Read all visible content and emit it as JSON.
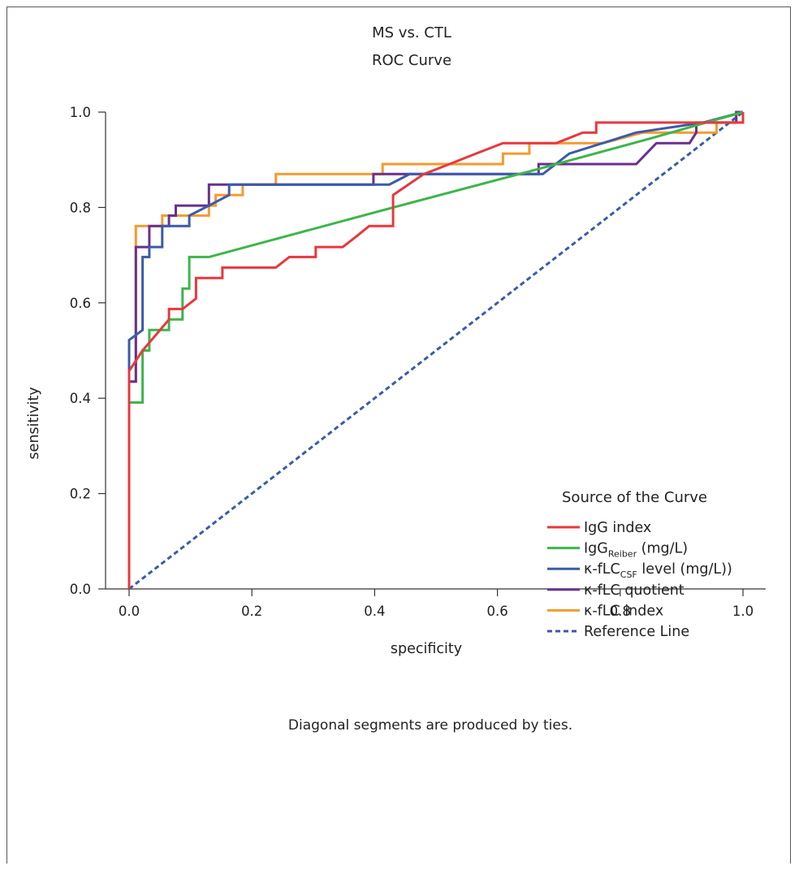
{
  "chart_data": {
    "type": "line",
    "title_lines": [
      "MS vs. CTL",
      "ROC Curve"
    ],
    "xlabel": "specificity",
    "ylabel": "sensitivity",
    "xlim": [
      0,
      1
    ],
    "ylim": [
      0,
      1
    ],
    "x_ticks": [
      "0.0",
      "0.2",
      "0.4",
      "0.6",
      "0.8",
      "1.0"
    ],
    "y_ticks": [
      "0.0",
      "0.2",
      "0.4",
      "0.6",
      "0.8",
      "1.0"
    ],
    "grid": false,
    "legend": {
      "title": "Source of the Curve",
      "placement": "right-lower"
    },
    "footnote": "Diagonal segments are produced by ties.",
    "series": [
      {
        "name": "IgG index",
        "label_parts": [
          {
            "t": "IgG index"
          }
        ],
        "color": "#e8383d",
        "dashed": false,
        "points": [
          [
            0,
            0
          ],
          [
            0,
            0.457
          ],
          [
            0.022,
            0.5
          ],
          [
            0.065,
            0.565
          ],
          [
            0.065,
            0.587
          ],
          [
            0.087,
            0.587
          ],
          [
            0.109,
            0.609
          ],
          [
            0.109,
            0.652
          ],
          [
            0.152,
            0.652
          ],
          [
            0.152,
            0.674
          ],
          [
            0.239,
            0.674
          ],
          [
            0.261,
            0.696
          ],
          [
            0.304,
            0.696
          ],
          [
            0.304,
            0.717
          ],
          [
            0.348,
            0.717
          ],
          [
            0.37,
            0.739
          ],
          [
            0.391,
            0.761
          ],
          [
            0.43,
            0.761
          ],
          [
            0.43,
            0.826
          ],
          [
            0.48,
            0.87
          ],
          [
            0.522,
            0.891
          ],
          [
            0.565,
            0.913
          ],
          [
            0.609,
            0.935
          ],
          [
            0.652,
            0.935
          ],
          [
            0.696,
            0.935
          ],
          [
            0.739,
            0.957
          ],
          [
            0.761,
            0.957
          ],
          [
            0.761,
            0.978
          ],
          [
            0.87,
            0.978
          ],
          [
            1,
            0.978
          ],
          [
            1,
            1
          ]
        ]
      },
      {
        "name": "IgG Reiber (mg/L)",
        "label_parts": [
          {
            "t": "IgG"
          },
          {
            "t": "Reiber",
            "sub": true
          },
          {
            "t": " (mg/L)"
          }
        ],
        "color": "#3db54a",
        "dashed": false,
        "points": [
          [
            0,
            0
          ],
          [
            0,
            0.391
          ],
          [
            0.022,
            0.391
          ],
          [
            0.022,
            0.5
          ],
          [
            0.033,
            0.5
          ],
          [
            0.033,
            0.543
          ],
          [
            0.065,
            0.543
          ],
          [
            0.065,
            0.565
          ],
          [
            0.087,
            0.565
          ],
          [
            0.087,
            0.63
          ],
          [
            0.098,
            0.63
          ],
          [
            0.098,
            0.696
          ],
          [
            0.13,
            0.696
          ],
          [
            0.43,
            0.8
          ],
          [
            0.65,
            0.875
          ],
          [
            0.85,
            0.945
          ],
          [
            1,
            1
          ]
        ]
      },
      {
        "name": "κ-fLC CSF level (mg/L))",
        "label_parts": [
          {
            "t": "κ-fLC"
          },
          {
            "t": "CSF",
            "sub": true
          },
          {
            "t": " level (mg/L))"
          }
        ],
        "color": "#3a5ba8",
        "dashed": false,
        "points": [
          [
            0,
            0
          ],
          [
            0,
            0.522
          ],
          [
            0.022,
            0.543
          ],
          [
            0.022,
            0.696
          ],
          [
            0.033,
            0.696
          ],
          [
            0.033,
            0.717
          ],
          [
            0.054,
            0.717
          ],
          [
            0.054,
            0.761
          ],
          [
            0.098,
            0.761
          ],
          [
            0.098,
            0.783
          ],
          [
            0.13,
            0.804
          ],
          [
            0.163,
            0.826
          ],
          [
            0.163,
            0.848
          ],
          [
            0.424,
            0.848
          ],
          [
            0.457,
            0.87
          ],
          [
            0.674,
            0.87
          ],
          [
            0.717,
            0.913
          ],
          [
            0.826,
            0.957
          ],
          [
            0.935,
            0.978
          ],
          [
            1,
            1
          ]
        ]
      },
      {
        "name": "κ-fLC quotient",
        "label_parts": [
          {
            "t": "κ-fLC quotient"
          }
        ],
        "color": "#6a2f8c",
        "dashed": false,
        "points": [
          [
            0,
            0
          ],
          [
            0,
            0.435
          ],
          [
            0.011,
            0.435
          ],
          [
            0.011,
            0.717
          ],
          [
            0.033,
            0.717
          ],
          [
            0.033,
            0.761
          ],
          [
            0.065,
            0.761
          ],
          [
            0.065,
            0.783
          ],
          [
            0.076,
            0.783
          ],
          [
            0.076,
            0.804
          ],
          [
            0.13,
            0.804
          ],
          [
            0.13,
            0.848
          ],
          [
            0.239,
            0.848
          ],
          [
            0.398,
            0.848
          ],
          [
            0.398,
            0.87
          ],
          [
            0.667,
            0.87
          ],
          [
            0.667,
            0.891
          ],
          [
            0.826,
            0.891
          ],
          [
            0.859,
            0.935
          ],
          [
            0.913,
            0.935
          ],
          [
            0.924,
            0.957
          ],
          [
            0.924,
            0.978
          ],
          [
            0.989,
            0.978
          ],
          [
            0.989,
            1
          ],
          [
            1,
            1
          ]
        ]
      },
      {
        "name": "κ-fLC index",
        "label_parts": [
          {
            "t": "κ-fLC index"
          }
        ],
        "color": "#f39b2e",
        "dashed": false,
        "points": [
          [
            0,
            0
          ],
          [
            0,
            0.435
          ],
          [
            0.011,
            0.435
          ],
          [
            0.011,
            0.761
          ],
          [
            0.054,
            0.761
          ],
          [
            0.054,
            0.783
          ],
          [
            0.13,
            0.783
          ],
          [
            0.13,
            0.804
          ],
          [
            0.141,
            0.804
          ],
          [
            0.141,
            0.826
          ],
          [
            0.185,
            0.826
          ],
          [
            0.185,
            0.848
          ],
          [
            0.239,
            0.848
          ],
          [
            0.239,
            0.87
          ],
          [
            0.413,
            0.87
          ],
          [
            0.413,
            0.891
          ],
          [
            0.609,
            0.891
          ],
          [
            0.609,
            0.913
          ],
          [
            0.652,
            0.913
          ],
          [
            0.652,
            0.935
          ],
          [
            0.772,
            0.935
          ],
          [
            0.837,
            0.957
          ],
          [
            0.957,
            0.957
          ],
          [
            0.957,
            0.978
          ],
          [
            0.989,
            0.978
          ],
          [
            0.989,
            1
          ],
          [
            1,
            1
          ]
        ]
      },
      {
        "name": "Reference Line",
        "label_parts": [
          {
            "t": "Reference Line"
          }
        ],
        "color": "#3a5ba8",
        "dashed": true,
        "points": [
          [
            0,
            0
          ],
          [
            1,
            1
          ]
        ]
      }
    ]
  }
}
